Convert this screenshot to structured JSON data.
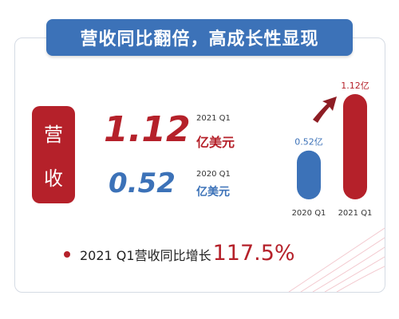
{
  "banner": {
    "title": "营收同比翻倍，高成长性显现"
  },
  "label": {
    "chars": [
      "营",
      "收"
    ]
  },
  "highlight": {
    "current": {
      "value": "1.12",
      "period": "2021 Q1",
      "unit": "亿美元"
    },
    "previous": {
      "value": "0.52",
      "period": "2020 Q1",
      "unit": "亿美元"
    }
  },
  "footer": {
    "text": "2021 Q1营收同比增长",
    "value": "117.5%"
  },
  "colors": {
    "red": "#b5212a",
    "blue": "#3c72b8"
  },
  "chart_data": {
    "type": "bar",
    "title": "",
    "xlabel": "",
    "ylabel": "",
    "categories": [
      "2020 Q1",
      "2021 Q1"
    ],
    "values": [
      0.52,
      1.12
    ],
    "data_labels": [
      "0.52亿",
      "1.12亿"
    ],
    "colors": [
      "#3c72b8",
      "#b5212a"
    ],
    "ylim": [
      0,
      1.12
    ],
    "grid": false,
    "annotation": "arrow-up-right"
  }
}
